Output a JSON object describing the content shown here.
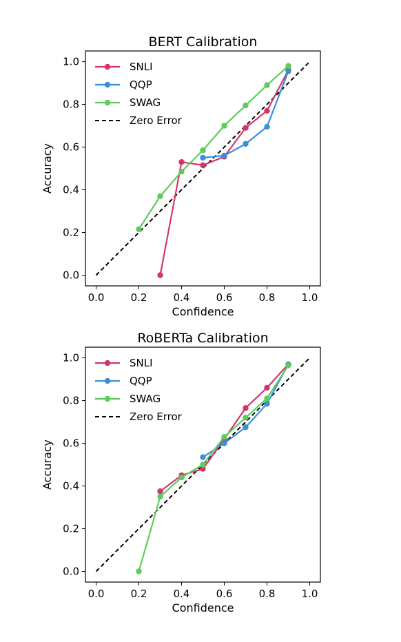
{
  "chart_data": [
    {
      "type": "line",
      "title": "BERT Calibration",
      "xlabel": "Confidence",
      "ylabel": "Accuracy",
      "xlim": [
        -0.05,
        1.05
      ],
      "ylim": [
        -0.05,
        1.05
      ],
      "xticks": [
        "0.0",
        "0.2",
        "0.4",
        "0.6",
        "0.8",
        "1.0"
      ],
      "yticks": [
        "0.0",
        "0.2",
        "0.4",
        "0.6",
        "0.8",
        "1.0"
      ],
      "grid": false,
      "legend_position": "top-left",
      "series": [
        {
          "name": "SNLI",
          "color": "#d6336c",
          "x": [
            0.3,
            0.4,
            0.5,
            0.6,
            0.7,
            0.8,
            0.9
          ],
          "y": [
            0.0,
            0.53,
            0.515,
            0.555,
            0.69,
            0.77,
            0.96
          ]
        },
        {
          "name": "QQP",
          "color": "#3a8fd6",
          "x": [
            0.5,
            0.6,
            0.7,
            0.8,
            0.9
          ],
          "y": [
            0.55,
            0.56,
            0.615,
            0.695,
            0.955
          ]
        },
        {
          "name": "SWAG",
          "color": "#5ccc5c",
          "x": [
            0.2,
            0.3,
            0.4,
            0.5,
            0.6,
            0.7,
            0.8,
            0.9
          ],
          "y": [
            0.215,
            0.37,
            0.485,
            0.585,
            0.7,
            0.795,
            0.89,
            0.98
          ]
        },
        {
          "name": "Zero Error",
          "color": "#000000",
          "dashed": true,
          "x": [
            0.0,
            1.0
          ],
          "y": [
            0.0,
            1.0
          ]
        }
      ]
    },
    {
      "type": "line",
      "title": "RoBERTa Calibration",
      "xlabel": "Confidence",
      "ylabel": "Accuracy",
      "xlim": [
        -0.05,
        1.05
      ],
      "ylim": [
        -0.05,
        1.05
      ],
      "xticks": [
        "0.0",
        "0.2",
        "0.4",
        "0.6",
        "0.8",
        "1.0"
      ],
      "yticks": [
        "0.0",
        "0.2",
        "0.4",
        "0.6",
        "0.8",
        "1.0"
      ],
      "grid": false,
      "legend_position": "top-left",
      "series": [
        {
          "name": "SNLI",
          "color": "#d6336c",
          "x": [
            0.3,
            0.4,
            0.5,
            0.6,
            0.7,
            0.8,
            0.9
          ],
          "y": [
            0.375,
            0.45,
            0.48,
            0.62,
            0.765,
            0.86,
            0.97
          ]
        },
        {
          "name": "QQP",
          "color": "#3a8fd6",
          "x": [
            0.5,
            0.6,
            0.7,
            0.8,
            0.9
          ],
          "y": [
            0.535,
            0.6,
            0.675,
            0.785,
            0.97
          ]
        },
        {
          "name": "SWAG",
          "color": "#5ccc5c",
          "x": [
            0.2,
            0.3,
            0.4,
            0.5,
            0.6,
            0.7,
            0.8,
            0.9
          ],
          "y": [
            0.0,
            0.35,
            0.44,
            0.5,
            0.63,
            0.72,
            0.81,
            0.965
          ]
        },
        {
          "name": "Zero Error",
          "color": "#000000",
          "dashed": true,
          "x": [
            0.0,
            1.0
          ],
          "y": [
            0.0,
            1.0
          ]
        }
      ]
    }
  ]
}
